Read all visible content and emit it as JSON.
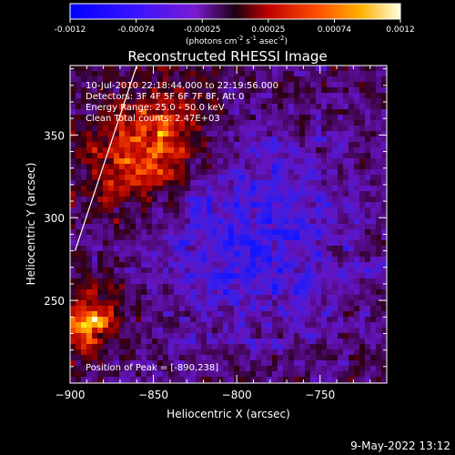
{
  "colors": {
    "background": "#000000",
    "axis": "#ffffff",
    "limb_line": "#ffffff"
  },
  "colorbar": {
    "ticks": [
      "-0.0012",
      "-0.00074",
      "-0.00025",
      "0.00025",
      "0.00074",
      "0.0012"
    ],
    "unit_main": "(photons cm",
    "unit_exp1": "-2",
    "unit_mid": " s",
    "unit_exp2": "-1",
    "unit_mid2": " asec",
    "unit_exp3": "-2",
    "unit_end": ")",
    "range": [
      -0.0012,
      0.0012
    ],
    "colormap": "RHESSI diverging: blue-purple (negative) to red-yellow-white (positive)"
  },
  "chart": {
    "title": "Reconstructed RHESSI Image",
    "xlabel": "Heliocentric X (arcsec)",
    "ylabel": "Heliocentric Y (arcsec)"
  },
  "annotations": {
    "time_range": "10-Jul-2010 22:18:44.000 to 22:19:56.000",
    "detectors": "Detectors: 3F 4F 5F 6F 7F 8F, Att 0",
    "energy": "Energy Range: 25.0 - 50.0 keV",
    "clean": "Clean   Total counts: 2.47E+03",
    "peak": "Position of Peak = [-890,238]"
  },
  "footer": {
    "date": "9-May-2022 13:12"
  },
  "chart_data": {
    "type": "heatmap",
    "title": "Reconstructed RHESSI Image",
    "xlabel": "Heliocentric X (arcsec)",
    "ylabel": "Heliocentric Y (arcsec)",
    "xlim": [
      -900,
      -710
    ],
    "ylim": [
      200,
      392
    ],
    "x_ticks": [
      -900,
      -850,
      -800,
      -750
    ],
    "y_ticks": [
      250,
      300,
      350
    ],
    "value_range": [
      -0.0012,
      0.0012
    ],
    "grid": false,
    "sources": [
      {
        "label": "main source",
        "x": -845,
        "y": 350,
        "peak_fraction": 0.75
      },
      {
        "label": "peak source",
        "x": -890,
        "y": 238,
        "peak_fraction": 1.0
      }
    ],
    "negative_region": {
      "x": -790,
      "y": 290,
      "min_fraction": -0.55
    },
    "limb_line": {
      "from": [
        -897,
        280
      ],
      "to": [
        -860,
        392
      ]
    }
  }
}
